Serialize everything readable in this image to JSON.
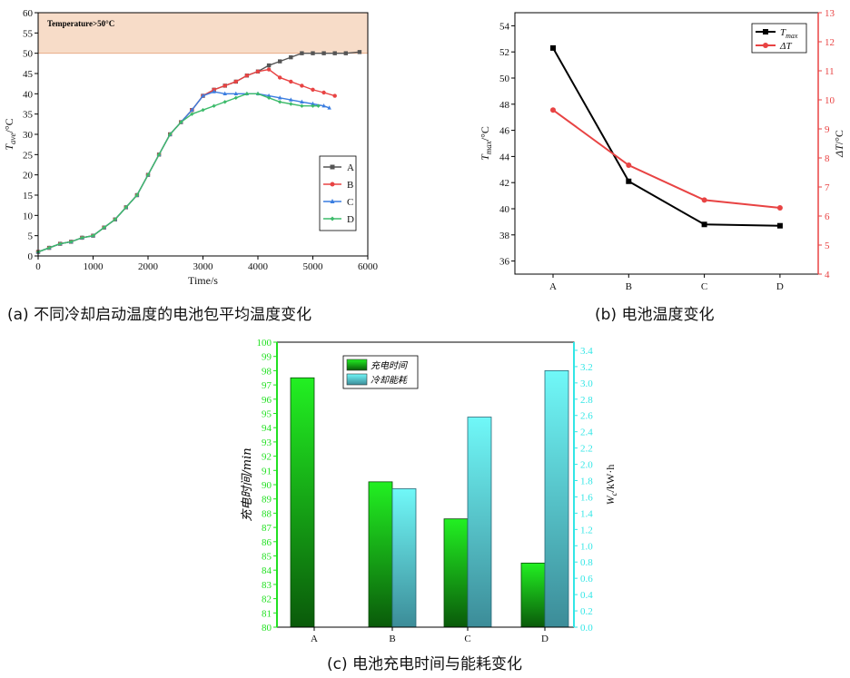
{
  "chart_data": [
    {
      "type": "line",
      "caption": "(a) 不同冷却启动温度的电池包平均温度变化",
      "xlabel": "Time/s",
      "ylabel": "T_ave/°C",
      "xlim": [
        0,
        6000
      ],
      "ylim": [
        0,
        60
      ],
      "xticks": [
        0,
        1000,
        2000,
        3000,
        4000,
        5000,
        6000
      ],
      "yticks": [
        0,
        5,
        10,
        15,
        20,
        25,
        30,
        35,
        40,
        45,
        50,
        55,
        60
      ],
      "shaded_region": {
        "y_from": 50,
        "y_to": 60,
        "label": "Temperature>50°C",
        "color": "#f7dcc8"
      },
      "legend": "right-center",
      "series": [
        {
          "name": "A",
          "color": "#555555",
          "marker": "square",
          "x": [
            0,
            200,
            400,
            600,
            800,
            1000,
            1200,
            1400,
            1600,
            1800,
            2000,
            2200,
            2400,
            2600,
            2800,
            3000,
            3200,
            3400,
            3600,
            3800,
            4000,
            4200,
            4400,
            4600,
            4800,
            5000,
            5200,
            5400,
            5600,
            5850
          ],
          "y": [
            1,
            2,
            3,
            3.5,
            4.5,
            5,
            7,
            9,
            12,
            15,
            20,
            25,
            30,
            33,
            36,
            39.5,
            41,
            42,
            43,
            44.5,
            45.5,
            47,
            48,
            49,
            50,
            50,
            50,
            50,
            50,
            50.3
          ]
        },
        {
          "name": "B",
          "color": "#e84343",
          "marker": "circle",
          "x": [
            0,
            200,
            400,
            600,
            800,
            1000,
            1200,
            1400,
            1600,
            1800,
            2000,
            2200,
            2400,
            2600,
            2800,
            3000,
            3200,
            3400,
            3600,
            3800,
            4000,
            4200,
            4400,
            4600,
            4800,
            5000,
            5200,
            5400
          ],
          "y": [
            1,
            2,
            3,
            3.5,
            4.5,
            5,
            7,
            9,
            12,
            15,
            20,
            25,
            30,
            33,
            36,
            39.5,
            41,
            42,
            43,
            44.5,
            45.5,
            46,
            44,
            43,
            42,
            41,
            40.3,
            39.5
          ]
        },
        {
          "name": "C",
          "color": "#3a7de0",
          "marker": "triangle",
          "x": [
            0,
            200,
            400,
            600,
            800,
            1000,
            1200,
            1400,
            1600,
            1800,
            2000,
            2200,
            2400,
            2600,
            2800,
            3000,
            3200,
            3400,
            3600,
            3800,
            4000,
            4200,
            4400,
            4600,
            4800,
            5000,
            5200,
            5300
          ],
          "y": [
            1,
            2,
            3,
            3.5,
            4.5,
            5,
            7,
            9,
            12,
            15,
            20,
            25,
            30,
            33,
            36,
            39.5,
            40.5,
            40,
            40,
            40,
            40,
            39.5,
            39,
            38.5,
            38,
            37.5,
            37,
            36.5
          ]
        },
        {
          "name": "D",
          "color": "#3dbb6b",
          "marker": "diamond",
          "x": [
            0,
            200,
            400,
            600,
            800,
            1000,
            1200,
            1400,
            1600,
            1800,
            2000,
            2200,
            2400,
            2600,
            2800,
            3000,
            3200,
            3400,
            3600,
            3800,
            4000,
            4200,
            4400,
            4600,
            4800,
            5000,
            5100
          ],
          "y": [
            1,
            2,
            3,
            3.5,
            4.5,
            5,
            7,
            9,
            12,
            15,
            20,
            25,
            30,
            33,
            35,
            36,
            37,
            38,
            39,
            40,
            40,
            39,
            38,
            37.5,
            37,
            37,
            37
          ]
        }
      ]
    },
    {
      "type": "line",
      "caption": "(b) 电池温度变化",
      "categories": [
        "A",
        "B",
        "C",
        "D"
      ],
      "ylabel_left": "T_max/°C",
      "ylabel_right": "ΔT/°C",
      "ylim_left": [
        35,
        55
      ],
      "ylim_right": [
        4,
        13
      ],
      "yticks_left": [
        36,
        38,
        40,
        42,
        44,
        46,
        48,
        50,
        52,
        54
      ],
      "yticks_right": [
        4,
        5,
        6,
        7,
        8,
        9,
        10,
        11,
        12,
        13
      ],
      "right_axis_color": "#e84343",
      "legend": "top-right",
      "series": [
        {
          "name": "T_max",
          "axis": "left",
          "color": "#000000",
          "marker": "square",
          "values": [
            52.3,
            42.1,
            38.8,
            38.7
          ]
        },
        {
          "name": "ΔT",
          "axis": "right",
          "color": "#e84343",
          "marker": "circle",
          "values": [
            9.65,
            7.75,
            6.55,
            6.28
          ]
        }
      ]
    },
    {
      "type": "bar",
      "caption": "(c) 电池充电时间与能耗变化",
      "categories": [
        "A",
        "B",
        "C",
        "D"
      ],
      "ylabel_left": "充电时间/min",
      "ylabel_right": "W_c/kW·h",
      "ylim_left": [
        80,
        100
      ],
      "ylim_right": [
        0,
        3.5
      ],
      "yticks_left": [
        80,
        81,
        82,
        83,
        84,
        85,
        86,
        87,
        88,
        89,
        90,
        91,
        92,
        93,
        94,
        95,
        96,
        97,
        98,
        99,
        100
      ],
      "yticks_right": [
        "0.0",
        "0.2",
        "0.4",
        "0.6",
        "0.8",
        "1.0",
        "1.2",
        "1.4",
        "1.6",
        "1.8",
        "2.0",
        "2.2",
        "2.4",
        "2.6",
        "2.8",
        "3.0",
        "3.2",
        "3.4"
      ],
      "left_axis_color": "#22e022",
      "right_axis_color": "#33e6e6",
      "legend": "top-left",
      "series": [
        {
          "name": "充电时间",
          "axis": "left",
          "color": "#22ee22",
          "values": [
            97.5,
            90.2,
            87.6,
            84.5
          ]
        },
        {
          "name": "冷却能耗",
          "axis": "right",
          "color": "#66eeee",
          "values": [
            0,
            1.7,
            2.58,
            3.15
          ]
        }
      ]
    }
  ]
}
